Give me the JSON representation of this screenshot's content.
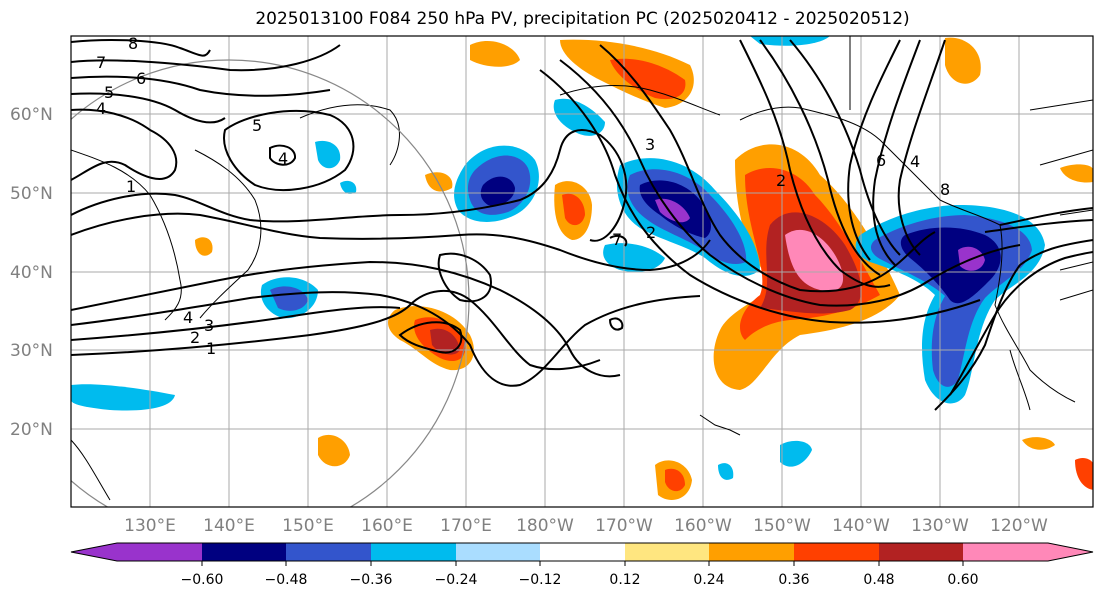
{
  "title": "2025013100 F084 250 hPa PV, precipitation PC (2025020412 - 2025020512)",
  "map": {
    "lon_labels": [
      "130°E",
      "140°E",
      "150°E",
      "160°E",
      "170°E",
      "180°W",
      "170°W",
      "160°W",
      "150°W",
      "140°W",
      "130°W",
      "120°W"
    ],
    "lat_labels": [
      "60°N",
      "50°N",
      "40°N",
      "30°N",
      "20°N"
    ],
    "pv_contour_labels": [
      "8",
      "7",
      "6",
      "5",
      "4",
      "5",
      "4",
      "1",
      "1",
      "2",
      "3",
      "4",
      "2",
      "3",
      "6",
      "4",
      "8",
      "2",
      "7"
    ]
  },
  "colorbar": {
    "ticks": [
      "−0.60",
      "−0.48",
      "−0.36",
      "−0.24",
      "−0.12",
      "0.12",
      "0.24",
      "0.36",
      "0.48",
      "0.60"
    ],
    "colors": [
      "#9933cc",
      "#000080",
      "#3355cc",
      "#00bbee",
      "#aaddff",
      "#ffffff",
      "#ffe680",
      "#ff9f00",
      "#ff4000",
      "#b22222",
      "#ff88b8"
    ]
  },
  "colors": {
    "frame": "#000000",
    "grid": "#aaaaaa",
    "coast": "#000000"
  }
}
